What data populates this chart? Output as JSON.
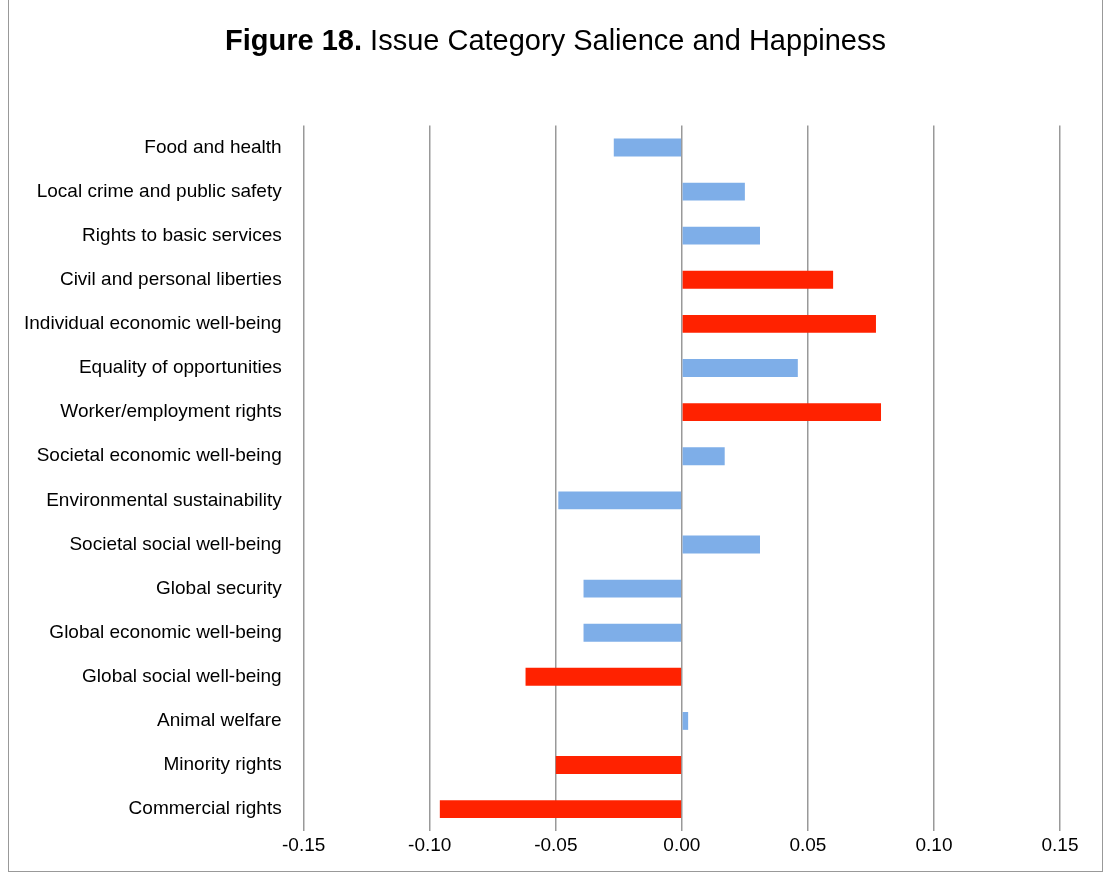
{
  "chart_data": {
    "type": "bar",
    "orientation": "horizontal",
    "title": "Figure 18. Issue Category Salience and Happiness",
    "categories": [
      "Food and health",
      "Local crime and public safety",
      "Rights to basic services",
      "Civil and personal liberties",
      "Individual economic well-being",
      "Equality of opportunities",
      "Worker/employment rights",
      "Societal economic well-being",
      "Environmental sustainability",
      "Societal social well-being",
      "Global security",
      "Global economic well-being",
      "Global social well-being",
      "Animal welfare",
      "Minority rights",
      "Commercial rights"
    ],
    "values": [
      -0.027,
      0.025,
      0.031,
      0.06,
      0.077,
      0.046,
      0.079,
      0.017,
      -0.049,
      0.031,
      -0.039,
      -0.039,
      -0.062,
      0.0025,
      -0.05,
      -0.096
    ],
    "colors": [
      "#7eaee8",
      "#7eaee8",
      "#7eaee8",
      "#ff2200",
      "#ff2200",
      "#7eaee8",
      "#ff2200",
      "#7eaee8",
      "#7eaee8",
      "#7eaee8",
      "#7eaee8",
      "#7eaee8",
      "#ff2200",
      "#7eaee8",
      "#ff2200",
      "#ff2200"
    ],
    "xlim": [
      -0.15,
      0.15
    ],
    "xticks": [
      {
        "value": -0.15,
        "label": "-0.15"
      },
      {
        "value": -0.1,
        "label": "-0.10"
      },
      {
        "value": -0.05,
        "label": "-0.05"
      },
      {
        "value": 0,
        "label": "0.00"
      },
      {
        "value": 0.05,
        "label": "0.05"
      },
      {
        "value": 0.1,
        "label": "0.10"
      },
      {
        "value": 0.15,
        "label": "0.15"
      }
    ],
    "grid": "x"
  }
}
